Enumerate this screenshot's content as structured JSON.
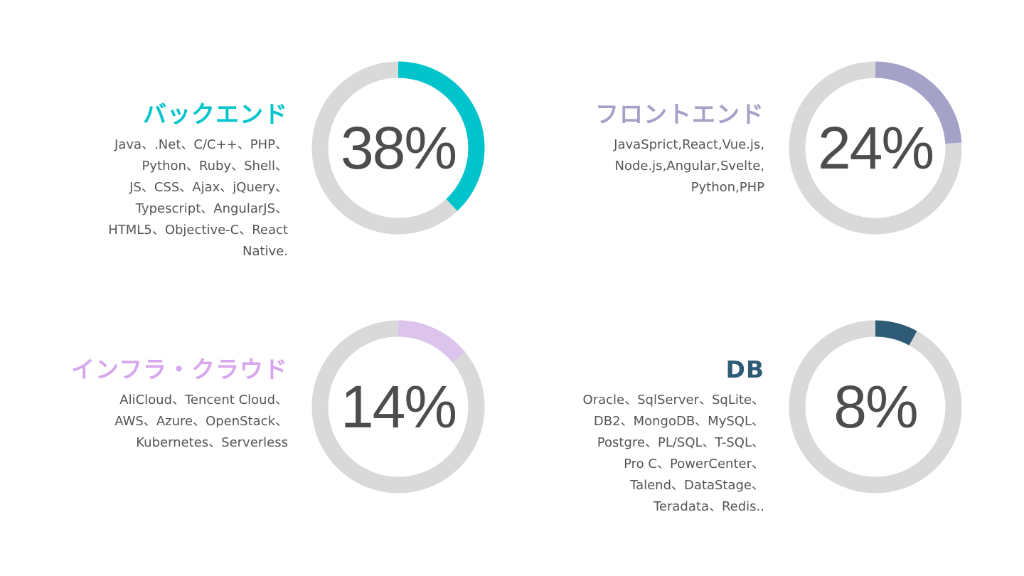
{
  "chart_data": {
    "type": "pie",
    "variant": "donut",
    "track_color": "#D9D9D9",
    "items": [
      {
        "title": "バックエンド",
        "value": 38,
        "label": "38%",
        "color": "#00C4CC",
        "lines": [
          "Java、.Net、C/C++、PHP、",
          "Python、Ruby、Shell、",
          "JS、CSS、Ajax、jQuery、",
          "Typescript、AngularJS、",
          "HTML5、Objective-C、React",
          "Native."
        ]
      },
      {
        "title": "フロントエンド",
        "value": 24,
        "label": "24%",
        "color": "#A5A2C8",
        "lines": [
          "JavaSprict,React,Vue.js,",
          "Node.js,Angular,Svelte,",
          "Python,PHP"
        ]
      },
      {
        "title": "インフラ・クラウド",
        "value": 14,
        "label": "14%",
        "color": "#DCC4EC",
        "title_color": "#D6A6EE",
        "lines": [
          "AliCloud、Tencent Cloud、",
          "AWS、Azure、OpenStack、",
          "Kubernetes、Serverless"
        ]
      },
      {
        "title": "DB",
        "value": 8,
        "label": "8%",
        "color": "#2E5B75",
        "lines": [
          "Oracle、SqlServer、SqLite、",
          "DB2、MongoDB、MySQL、",
          "Postgre、PL/SQL、T-SQL、",
          "Pro C、PowerCenter、",
          "Talend、DataStage、",
          "Teradata、Redis.."
        ]
      }
    ]
  }
}
